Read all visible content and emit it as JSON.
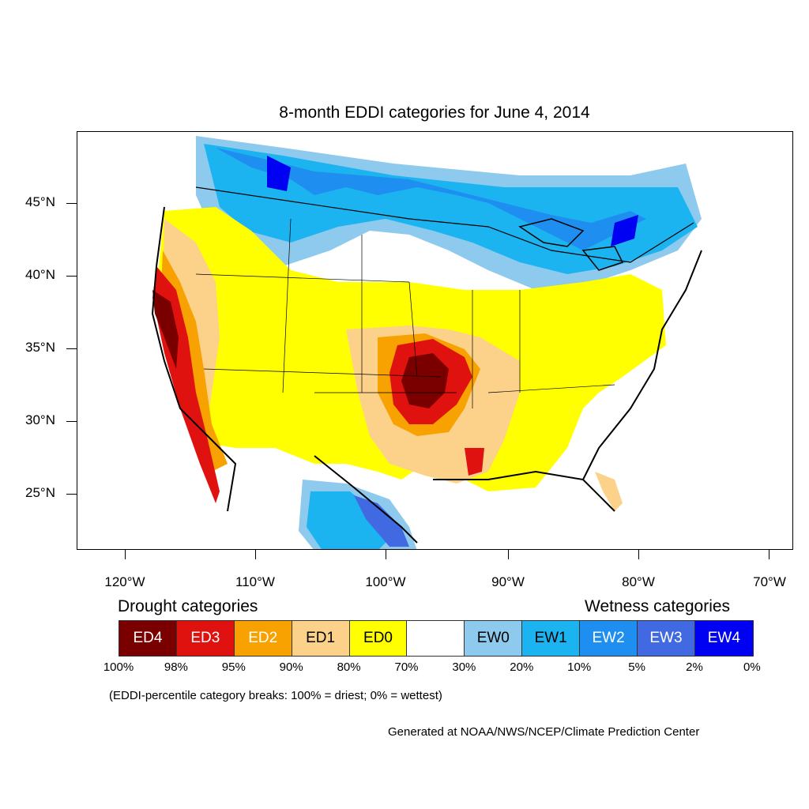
{
  "title": "8-month EDDI categories for June 4, 2014",
  "lat_labels": [
    "45°N",
    "40°N",
    "35°N",
    "30°N",
    "25°N"
  ],
  "lon_labels": [
    "120°W",
    "110°W",
    "100°W",
    "90°W",
    "80°W",
    "70°W"
  ],
  "drought_heading": "Drought categories",
  "wetness_heading": "Wetness categories",
  "legend": [
    {
      "label": "ED4",
      "color": "#7a0000",
      "text_color": "#ffffff"
    },
    {
      "label": "ED3",
      "color": "#e0120f",
      "text_color": "#ffffff"
    },
    {
      "label": "ED2",
      "color": "#f7a200",
      "text_color": "#ffffff"
    },
    {
      "label": "ED1",
      "color": "#fcd28a",
      "text_color": "#000000"
    },
    {
      "label": "ED0",
      "color": "#ffff00",
      "text_color": "#000000"
    },
    {
      "label": "",
      "color": "#ffffff",
      "text_color": "#000000"
    },
    {
      "label": "EW0",
      "color": "#8ec9ee",
      "text_color": "#000000"
    },
    {
      "label": "EW1",
      "color": "#1cb4f0",
      "text_color": "#000000"
    },
    {
      "label": "EW2",
      "color": "#1e8ff0",
      "text_color": "#ffffff"
    },
    {
      "label": "EW3",
      "color": "#4169e1",
      "text_color": "#ffffff"
    },
    {
      "label": "EW4",
      "color": "#0000f2",
      "text_color": "#ffffff"
    }
  ],
  "percent_breaks": [
    "100%",
    "98%",
    "95%",
    "90%",
    "80%",
    "70%",
    "30%",
    "20%",
    "10%",
    "5%",
    "2%",
    "0%"
  ],
  "note": "(EDDI-percentile category breaks: 100% = driest; 0% = wettest)",
  "credit": "Generated at NOAA/NWS/NCEP/Climate Prediction Center"
}
